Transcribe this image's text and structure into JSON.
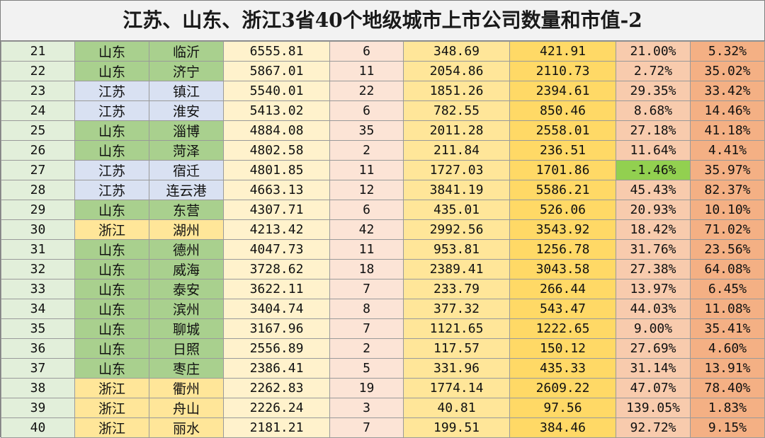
{
  "title": "江苏、山东、浙江3省40个地级城市上市公司数量和市值-2",
  "colors": {
    "jiangsu": "#d9e1f2",
    "shandong": "#a9d08e",
    "zhejiang": "#ffe699",
    "negative_highlight": "#92d050"
  },
  "rows": [
    {
      "rank": "21",
      "province": "山东",
      "city": "临沂",
      "gdp": "6555.81",
      "count": "6",
      "value1": "348.69",
      "value2": "421.91",
      "change": "21.00%",
      "ratio": "5.32%"
    },
    {
      "rank": "22",
      "province": "山东",
      "city": "济宁",
      "gdp": "5867.01",
      "count": "11",
      "value1": "2054.86",
      "value2": "2110.73",
      "change": "2.72%",
      "ratio": "35.02%"
    },
    {
      "rank": "23",
      "province": "江苏",
      "city": "镇江",
      "gdp": "5540.01",
      "count": "22",
      "value1": "1851.26",
      "value2": "2394.61",
      "change": "29.35%",
      "ratio": "33.42%"
    },
    {
      "rank": "24",
      "province": "江苏",
      "city": "淮安",
      "gdp": "5413.02",
      "count": "6",
      "value1": "782.55",
      "value2": "850.46",
      "change": "8.68%",
      "ratio": "14.46%"
    },
    {
      "rank": "25",
      "province": "山东",
      "city": "淄博",
      "gdp": "4884.08",
      "count": "35",
      "value1": "2011.28",
      "value2": "2558.01",
      "change": "27.18%",
      "ratio": "41.18%"
    },
    {
      "rank": "26",
      "province": "山东",
      "city": "菏泽",
      "gdp": "4802.58",
      "count": "2",
      "value1": "211.84",
      "value2": "236.51",
      "change": "11.64%",
      "ratio": "4.41%"
    },
    {
      "rank": "27",
      "province": "江苏",
      "city": "宿迁",
      "gdp": "4801.85",
      "count": "11",
      "value1": "1727.03",
      "value2": "1701.86",
      "change": "-1.46%",
      "ratio": "35.97%"
    },
    {
      "rank": "28",
      "province": "江苏",
      "city": "连云港",
      "gdp": "4663.13",
      "count": "12",
      "value1": "3841.19",
      "value2": "5586.21",
      "change": "45.43%",
      "ratio": "82.37%"
    },
    {
      "rank": "29",
      "province": "山东",
      "city": "东营",
      "gdp": "4307.71",
      "count": "6",
      "value1": "435.01",
      "value2": "526.06",
      "change": "20.93%",
      "ratio": "10.10%"
    },
    {
      "rank": "30",
      "province": "浙江",
      "city": "湖州",
      "gdp": "4213.42",
      "count": "42",
      "value1": "2992.56",
      "value2": "3543.92",
      "change": "18.42%",
      "ratio": "71.02%"
    },
    {
      "rank": "31",
      "province": "山东",
      "city": "德州",
      "gdp": "4047.73",
      "count": "11",
      "value1": "953.81",
      "value2": "1256.78",
      "change": "31.76%",
      "ratio": "23.56%"
    },
    {
      "rank": "32",
      "province": "山东",
      "city": "威海",
      "gdp": "3728.62",
      "count": "18",
      "value1": "2389.41",
      "value2": "3043.58",
      "change": "27.38%",
      "ratio": "64.08%"
    },
    {
      "rank": "33",
      "province": "山东",
      "city": "泰安",
      "gdp": "3622.11",
      "count": "7",
      "value1": "233.79",
      "value2": "266.44",
      "change": "13.97%",
      "ratio": "6.45%"
    },
    {
      "rank": "34",
      "province": "山东",
      "city": "滨州",
      "gdp": "3404.74",
      "count": "8",
      "value1": "377.32",
      "value2": "543.47",
      "change": "44.03%",
      "ratio": "11.08%"
    },
    {
      "rank": "35",
      "province": "山东",
      "city": "聊城",
      "gdp": "3167.96",
      "count": "7",
      "value1": "1121.65",
      "value2": "1222.65",
      "change": "9.00%",
      "ratio": "35.41%"
    },
    {
      "rank": "36",
      "province": "山东",
      "city": "日照",
      "gdp": "2556.89",
      "count": "2",
      "value1": "117.57",
      "value2": "150.12",
      "change": "27.69%",
      "ratio": "4.60%"
    },
    {
      "rank": "37",
      "province": "山东",
      "city": "枣庄",
      "gdp": "2386.41",
      "count": "5",
      "value1": "331.96",
      "value2": "435.33",
      "change": "31.14%",
      "ratio": "13.91%"
    },
    {
      "rank": "38",
      "province": "浙江",
      "city": "衢州",
      "gdp": "2262.83",
      "count": "19",
      "value1": "1774.14",
      "value2": "2609.22",
      "change": "47.07%",
      "ratio": "78.40%"
    },
    {
      "rank": "39",
      "province": "浙江",
      "city": "舟山",
      "gdp": "2226.24",
      "count": "3",
      "value1": "40.81",
      "value2": "97.56",
      "change": "139.05%",
      "ratio": "1.83%"
    },
    {
      "rank": "40",
      "province": "浙江",
      "city": "丽水",
      "gdp": "2181.21",
      "count": "7",
      "value1": "199.51",
      "value2": "384.46",
      "change": "92.72%",
      "ratio": "9.15%"
    }
  ]
}
